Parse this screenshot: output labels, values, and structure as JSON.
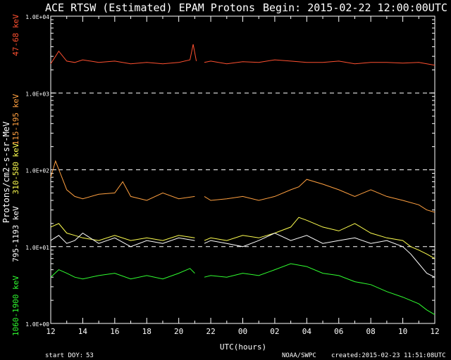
{
  "header": {
    "title": "ACE RTSW (Estimated) EPAM Protons",
    "begin": "Begin: 2015-02-22 12:00:00UTC"
  },
  "footer": {
    "start_doy_label": "start DOY:",
    "start_doy_value": "53",
    "credit": "NOAA/SWPC",
    "created": "created:2015-02-23 11:51:08UTC"
  },
  "chart_data": {
    "type": "line",
    "title": "ACE RTSW (Estimated) EPAM Protons",
    "xlabel": "UTC(hours)",
    "ylabel": "Protons/cm2-s-sr-MeV",
    "x_unit": "hours since start (2015-02-22 12:00 UTC)",
    "xlim": [
      0,
      24
    ],
    "ylim": [
      1,
      10000
    ],
    "yscale": "log",
    "x_tick_labels": [
      "12",
      "14",
      "16",
      "18",
      "20",
      "22",
      "00",
      "02",
      "04",
      "06",
      "08",
      "10",
      "12"
    ],
    "y_tick_labels": [
      "1.0E+00",
      "1.0E+01",
      "1.0E+02",
      "1.0E+03",
      "1.0E+04"
    ],
    "grid": "dashed at 1.0E+01, 1.0E+02, 1.0E+03",
    "gap_hours": [
      9.15,
      9.55
    ],
    "series": [
      {
        "name": "47-68 keV",
        "color": "#ff5030",
        "x": [
          0,
          0.5,
          1,
          1.5,
          2,
          3,
          4,
          5,
          6,
          7,
          8,
          8.7,
          8.9,
          9.1,
          9.6,
          10,
          11,
          12,
          13,
          14,
          15,
          16,
          17,
          18,
          19,
          20,
          21,
          22,
          23,
          24
        ],
        "y": [
          2400,
          3500,
          2600,
          2500,
          2700,
          2500,
          2600,
          2400,
          2500,
          2400,
          2500,
          2700,
          4300,
          2600,
          2500,
          2600,
          2400,
          2550,
          2500,
          2700,
          2600,
          2500,
          2500,
          2600,
          2400,
          2500,
          2500,
          2450,
          2500,
          2300
        ]
      },
      {
        "name": "115-195 keV",
        "color": "#ffa040",
        "x": [
          0,
          0.3,
          0.6,
          1,
          1.5,
          2,
          3,
          4,
          4.5,
          5,
          6,
          7,
          8,
          9,
          9.6,
          10,
          11,
          12,
          13,
          14,
          15,
          15.5,
          16,
          17,
          18,
          19,
          20,
          21,
          22,
          23,
          23.5,
          24
        ],
        "y": [
          80,
          130,
          90,
          55,
          45,
          42,
          48,
          50,
          70,
          45,
          40,
          50,
          42,
          45,
          45,
          40,
          42,
          45,
          40,
          45,
          55,
          60,
          75,
          65,
          55,
          45,
          55,
          45,
          40,
          35,
          30,
          28
        ]
      },
      {
        "name": "310-580 keV",
        "color": "#ffff50",
        "x": [
          0,
          0.5,
          1,
          1.5,
          2,
          3,
          4,
          5,
          6,
          7,
          8,
          9,
          9.6,
          10,
          11,
          12,
          13,
          14,
          15,
          15.5,
          16,
          17,
          18,
          19,
          20,
          21,
          22,
          22.5,
          23,
          23.5,
          24
        ],
        "y": [
          18,
          20,
          15,
          14,
          13,
          12,
          14,
          12,
          13,
          12,
          14,
          13,
          12,
          13,
          12,
          14,
          13,
          15,
          18,
          24,
          22,
          18,
          16,
          20,
          15,
          13,
          12,
          10,
          9,
          8,
          7
        ]
      },
      {
        "name": "795-1193 keV",
        "color": "#ffffff",
        "x": [
          0,
          0.5,
          1,
          1.5,
          2,
          3,
          4,
          5,
          6,
          7,
          8,
          9,
          9.6,
          10,
          11,
          12,
          13,
          14,
          15,
          16,
          17,
          18,
          19,
          20,
          21,
          22,
          22.5,
          23,
          23.5,
          24
        ],
        "y": [
          12,
          14,
          11,
          12,
          15,
          11,
          13,
          10,
          12,
          11,
          13,
          12,
          11,
          12,
          11,
          10,
          12,
          15,
          12,
          14,
          11,
          12,
          13,
          11,
          12,
          10,
          8,
          6,
          4.5,
          4
        ]
      },
      {
        "name": "1060-1900 keV",
        "color": "#30ff30",
        "x": [
          0,
          0.5,
          1,
          1.5,
          2,
          3,
          4,
          5,
          6,
          7,
          8,
          8.7,
          9,
          9.6,
          10,
          11,
          12,
          13,
          14,
          15,
          16,
          17,
          18,
          19,
          20,
          21,
          22,
          23,
          23.5,
          24
        ],
        "y": [
          4,
          5,
          4.5,
          4,
          3.8,
          4.2,
          4.5,
          3.8,
          4.2,
          3.8,
          4.5,
          5.2,
          4.5,
          4,
          4.2,
          4,
          4.5,
          4.2,
          5,
          6,
          5.5,
          4.5,
          4.2,
          3.5,
          3.2,
          2.6,
          2.2,
          1.8,
          1.5,
          1.3
        ]
      }
    ]
  }
}
